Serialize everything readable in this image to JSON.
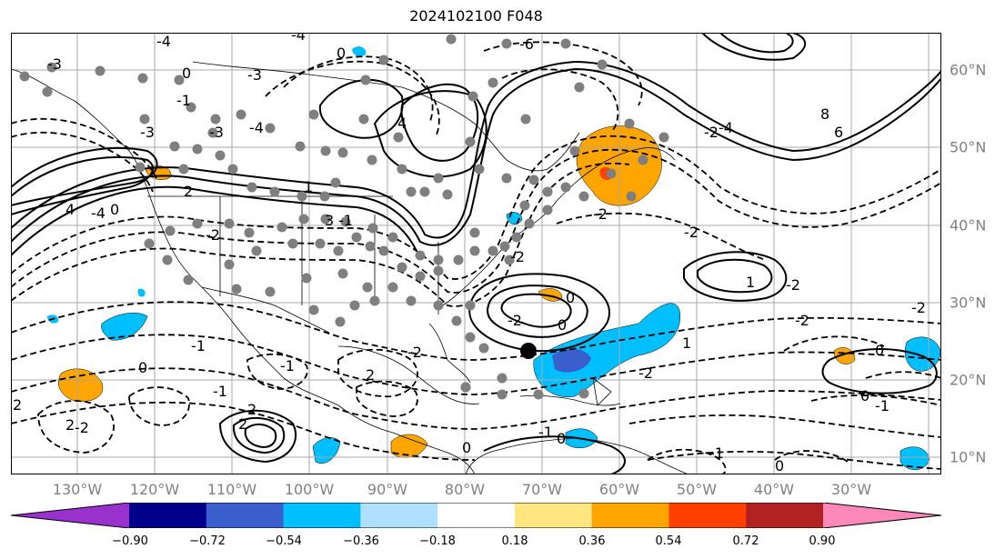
{
  "title": "2024102100 F048",
  "lon_labels": [
    "130°W",
    "120°W",
    "110°W",
    "100°W",
    "90°W",
    "80°W",
    "70°W",
    "60°W",
    "50°W",
    "40°W",
    "30°W"
  ],
  "lat_labels": [
    "60°N",
    "50°N",
    "40°N",
    "30°N",
    "20°N",
    "10°N"
  ],
  "colorbar": {
    "colors": [
      "#9932cc",
      "#00008b",
      "#3a5fcd",
      "#00bfff",
      "#b0e0ff",
      "#ffffff",
      "#ffe680",
      "#ffa500",
      "#ff4000",
      "#b22222",
      "#ff88bb"
    ],
    "ticks": [
      "−0.90",
      "−0.72",
      "−0.54",
      "−0.36",
      "−0.18",
      "0.18",
      "0.36",
      "0.54",
      "0.72",
      "0.90"
    ]
  },
  "contour_labels": [
    "-3",
    "-4",
    "-3",
    "0",
    "-4",
    "0",
    "-1",
    "-3",
    "4",
    "-3",
    "-4",
    "-6",
    "8",
    "6",
    "-4",
    "-2",
    "4",
    "0",
    "-4",
    "2",
    "1",
    "-1",
    "-2",
    "-2",
    "-2",
    "-2",
    "0",
    "-2",
    "-1",
    "-1",
    "2",
    "-2",
    "-2",
    "1",
    "-2",
    "0",
    "0",
    "-1",
    "-2",
    "-1",
    "2",
    "2",
    "0",
    "-2",
    "0",
    "0",
    "-1",
    "0",
    "3",
    "-2",
    "2",
    "2",
    "1",
    "-1",
    "0"
  ],
  "map_colors": {
    "grid": "#a8a8a8",
    "station": "#7f7f7f",
    "orange": "#ffa500",
    "cyan": "#00bfff",
    "blue": "#3a5fcd"
  }
}
